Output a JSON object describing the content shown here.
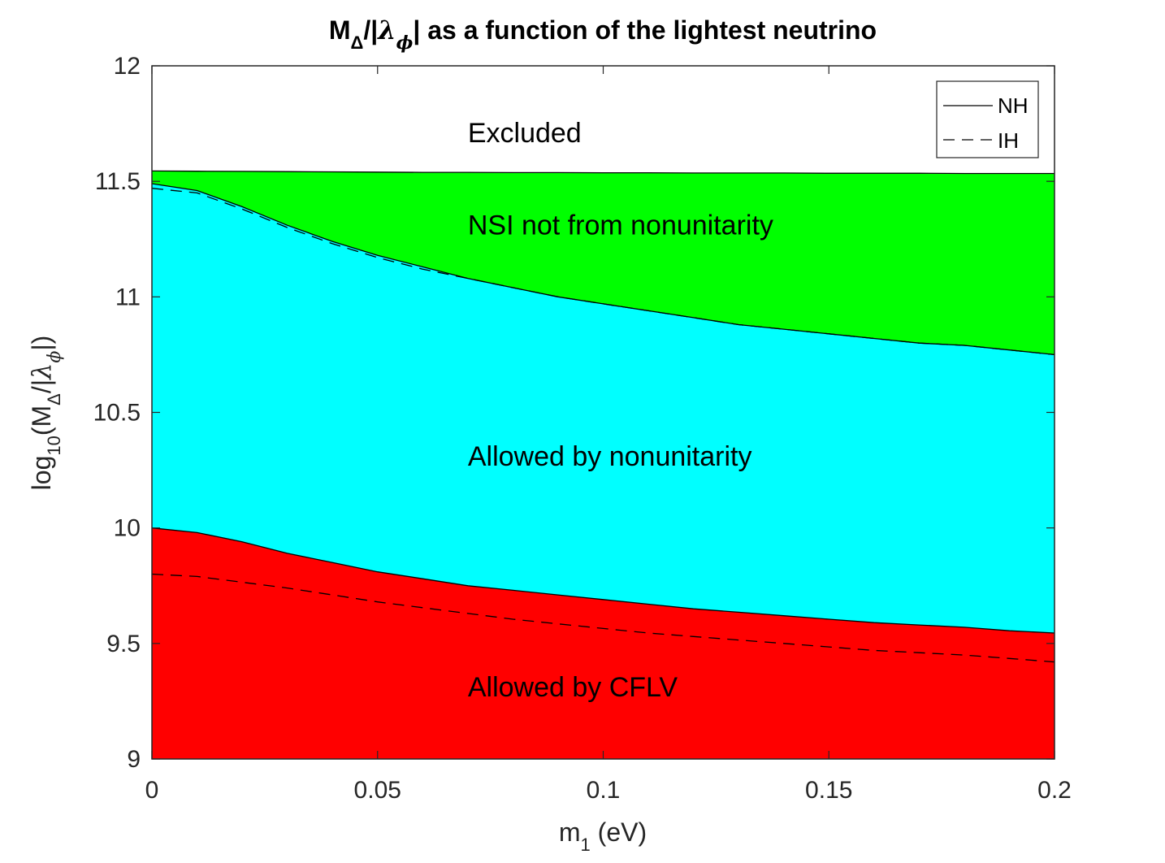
{
  "chart_data": {
    "type": "area",
    "title": {
      "prefix": "M",
      "sub_delta": "Δ",
      "mid": "/|",
      "lambda": "λ",
      "sub_phi": "ϕ",
      "suffix": "| as a function of the lightest neutrino"
    },
    "xlabel": {
      "main": "m",
      "sub": "1",
      "unit": " (eV)"
    },
    "ylabel": {
      "prefix": "log",
      "sub10": "10",
      "open": "(M",
      "sub_delta": "Δ",
      "mid": "/|",
      "lambda": "λ",
      "sub_phi": "ϕ",
      "close": "|)"
    },
    "xlim": [
      0,
      0.2
    ],
    "ylim": [
      9,
      12
    ],
    "x_ticks": [
      0,
      0.05,
      0.1,
      0.15,
      0.2
    ],
    "x_tick_labels": [
      "0",
      "0.05",
      "0.1",
      "0.15",
      "0.2"
    ],
    "y_ticks": [
      9,
      9.5,
      10,
      10.5,
      11,
      11.5,
      12
    ],
    "y_tick_labels": [
      "9",
      "9.5",
      "10",
      "10.5",
      "11",
      "11.5",
      "12"
    ],
    "x": [
      0,
      0.01,
      0.02,
      0.03,
      0.04,
      0.05,
      0.06,
      0.07,
      0.08,
      0.09,
      0.1,
      0.11,
      0.12,
      0.13,
      0.14,
      0.15,
      0.16,
      0.17,
      0.18,
      0.19,
      0.2
    ],
    "series": [
      {
        "name": "NH",
        "role": "excluded-boundary",
        "style": "solid",
        "values": [
          11.545,
          11.544,
          11.543,
          11.542,
          11.541,
          11.54,
          11.539,
          11.539,
          11.538,
          11.538,
          11.537,
          11.537,
          11.536,
          11.536,
          11.536,
          11.535,
          11.535,
          11.535,
          11.534,
          11.534,
          11.534
        ]
      },
      {
        "name": "NH",
        "role": "nonunitarity-boundary",
        "style": "solid",
        "values": [
          11.49,
          11.46,
          11.39,
          11.31,
          11.24,
          11.18,
          11.13,
          11.08,
          11.04,
          11.0,
          10.97,
          10.94,
          10.91,
          10.88,
          10.86,
          10.84,
          10.82,
          10.8,
          10.79,
          10.77,
          10.75
        ]
      },
      {
        "name": "IH",
        "role": "nonunitarity-boundary",
        "style": "dashed",
        "values": [
          11.47,
          11.45,
          11.38,
          11.3,
          11.23,
          11.17,
          11.12,
          11.08,
          11.04,
          11.0,
          10.97,
          10.94,
          10.91,
          10.88,
          10.86,
          10.84,
          10.82,
          10.8,
          10.79,
          10.77,
          10.75
        ]
      },
      {
        "name": "NH",
        "role": "cflv-boundary",
        "style": "solid",
        "values": [
          10.0,
          9.98,
          9.94,
          9.89,
          9.85,
          9.81,
          9.78,
          9.75,
          9.73,
          9.71,
          9.69,
          9.67,
          9.65,
          9.635,
          9.62,
          9.605,
          9.59,
          9.58,
          9.57,
          9.555,
          9.545
        ]
      },
      {
        "name": "IH",
        "role": "cflv-boundary",
        "style": "dashed",
        "values": [
          9.8,
          9.79,
          9.765,
          9.74,
          9.71,
          9.68,
          9.655,
          9.63,
          9.605,
          9.585,
          9.565,
          9.545,
          9.53,
          9.515,
          9.5,
          9.485,
          9.47,
          9.46,
          9.45,
          9.435,
          9.42
        ]
      }
    ],
    "regions": [
      {
        "label": "Excluded",
        "color": "#ffffff",
        "label_x": 0.07,
        "label_y": 11.67
      },
      {
        "label": "NSI not from nonunitarity",
        "color": "#00ff00",
        "label_x": 0.07,
        "label_y": 11.27
      },
      {
        "label": "Allowed by nonunitarity",
        "color": "#00ffff",
        "label_x": 0.07,
        "label_y": 10.27
      },
      {
        "label": "Allowed by CFLV",
        "color": "#ff0000",
        "label_x": 0.07,
        "label_y": 9.27
      }
    ],
    "legend": {
      "position": "top-right",
      "entries": [
        {
          "label": "NH",
          "style": "solid"
        },
        {
          "label": "IH",
          "style": "dashed"
        }
      ]
    },
    "grid": false
  }
}
